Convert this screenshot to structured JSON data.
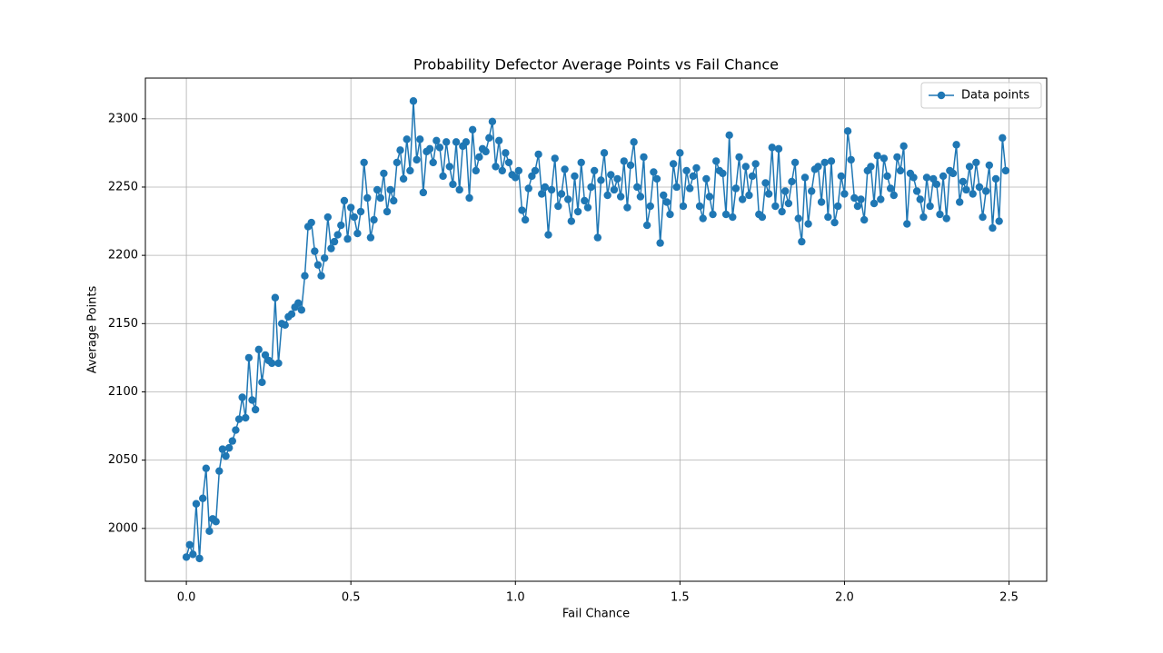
{
  "chart_data": {
    "type": "line",
    "title": "Probability Defector Average Points vs Fail Chance",
    "x_label": "Fail Chance",
    "y_label": "Average Points",
    "xlim": [
      -0.1245,
      2.6145
    ],
    "ylim": [
      1961.3,
      2329.8
    ],
    "xticks": [
      {
        "value": 0,
        "label": "0.0"
      },
      {
        "value": 0.5,
        "label": "0.5"
      },
      {
        "value": 1,
        "label": "1.0"
      },
      {
        "value": 1.5,
        "label": "1.5"
      },
      {
        "value": 2,
        "label": "2.0"
      },
      {
        "value": 2.5,
        "label": "2.5"
      }
    ],
    "yticks": [
      2000,
      2050,
      2100,
      2150,
      2200,
      2250,
      2300
    ],
    "grid": true,
    "legend": "upper right",
    "x": [
      0,
      0.01,
      0.02,
      0.03,
      0.04,
      0.05,
      0.06,
      0.07,
      0.08,
      0.09,
      0.1,
      0.11,
      0.12,
      0.13,
      0.14,
      0.15,
      0.16,
      0.17,
      0.18,
      0.19,
      0.2,
      0.21,
      0.22,
      0.23,
      0.24,
      0.25,
      0.26,
      0.27,
      0.28,
      0.29,
      0.3,
      0.31,
      0.32,
      0.33,
      0.34,
      0.35,
      0.36,
      0.37,
      0.38,
      0.39,
      0.4,
      0.41,
      0.42,
      0.43,
      0.44,
      0.45,
      0.46,
      0.47,
      0.48,
      0.49,
      0.5,
      0.51,
      0.52,
      0.53,
      0.54,
      0.55,
      0.56,
      0.57,
      0.58,
      0.59,
      0.6,
      0.61,
      0.62,
      0.63,
      0.64,
      0.65,
      0.66,
      0.67,
      0.68,
      0.69,
      0.7,
      0.71,
      0.72,
      0.73,
      0.74,
      0.75,
      0.76,
      0.77,
      0.78,
      0.79,
      0.8,
      0.81,
      0.82,
      0.83,
      0.84,
      0.85,
      0.86,
      0.87,
      0.88,
      0.89,
      0.9,
      0.91,
      0.92,
      0.93,
      0.94,
      0.95,
      0.96,
      0.97,
      0.98,
      0.99,
      1,
      1.01,
      1.02,
      1.03,
      1.04,
      1.05,
      1.06,
      1.07,
      1.08,
      1.09,
      1.1,
      1.11,
      1.12,
      1.13,
      1.14,
      1.15,
      1.16,
      1.17,
      1.18,
      1.19,
      1.2,
      1.21,
      1.22,
      1.23,
      1.24,
      1.25,
      1.26,
      1.27,
      1.28,
      1.29,
      1.3,
      1.31,
      1.32,
      1.33,
      1.34,
      1.35,
      1.36,
      1.37,
      1.38,
      1.39,
      1.4,
      1.41,
      1.42,
      1.43,
      1.44,
      1.45,
      1.46,
      1.47,
      1.48,
      1.49,
      1.5,
      1.51,
      1.52,
      1.53,
      1.54,
      1.55,
      1.56,
      1.57,
      1.58,
      1.59,
      1.6,
      1.61,
      1.62,
      1.63,
      1.64,
      1.65,
      1.66,
      1.67,
      1.68,
      1.69,
      1.7,
      1.71,
      1.72,
      1.73,
      1.74,
      1.75,
      1.76,
      1.77,
      1.78,
      1.79,
      1.8,
      1.81,
      1.82,
      1.83,
      1.84,
      1.85,
      1.86,
      1.87,
      1.88,
      1.89,
      1.9,
      1.91,
      1.92,
      1.93,
      1.94,
      1.95,
      1.96,
      1.97,
      1.98,
      1.99,
      2,
      2.01,
      2.02,
      2.03,
      2.04,
      2.05,
      2.06,
      2.07,
      2.08,
      2.09,
      2.1,
      2.11,
      2.12,
      2.13,
      2.14,
      2.15,
      2.16,
      2.17,
      2.18,
      2.19,
      2.2,
      2.21,
      2.22,
      2.23,
      2.24,
      2.25,
      2.26,
      2.27,
      2.28,
      2.29,
      2.3,
      2.31,
      2.32,
      2.33,
      2.34,
      2.35,
      2.36,
      2.37,
      2.38,
      2.39,
      2.4,
      2.41,
      2.42,
      2.43,
      2.44,
      2.45,
      2.46,
      2.47,
      2.48,
      2.49
    ],
    "series": [
      {
        "name": "Data points",
        "color": "#1f77b4",
        "values": [
          1979,
          1988,
          1981,
          2018,
          1978,
          2022,
          2044,
          1998,
          2007,
          2005,
          2042,
          2058,
          2053,
          2059,
          2064,
          2072,
          2080,
          2096,
          2081,
          2125,
          2094,
          2087,
          2131,
          2107,
          2127,
          2123,
          2121,
          2169,
          2121,
          2150,
          2149,
          2155,
          2157,
          2162,
          2165,
          2160,
          2185,
          2221,
          2224,
          2203,
          2193,
          2185,
          2198,
          2228,
          2205,
          2210,
          2215,
          2222,
          2240,
          2212,
          2235,
          2228,
          2216,
          2232,
          2268,
          2242,
          2213,
          2226,
          2248,
          2242,
          2260,
          2232,
          2248,
          2240,
          2268,
          2277,
          2256,
          2285,
          2262,
          2313,
          2270,
          2285,
          2246,
          2276,
          2278,
          2268,
          2284,
          2279,
          2258,
          2283,
          2265,
          2252,
          2283,
          2248,
          2280,
          2283,
          2242,
          2292,
          2262,
          2272,
          2278,
          2276,
          2286,
          2298,
          2265,
          2284,
          2262,
          2275,
          2268,
          2259,
          2257,
          2262,
          2233,
          2226,
          2249,
          2258,
          2262,
          2274,
          2245,
          2250,
          2215,
          2248,
          2271,
          2236,
          2245,
          2263,
          2241,
          2225,
          2258,
          2232,
          2268,
          2240,
          2235,
          2250,
          2262,
          2213,
          2255,
          2275,
          2244,
          2259,
          2248,
          2256,
          2243,
          2269,
          2235,
          2266,
          2283,
          2250,
          2243,
          2272,
          2222,
          2236,
          2261,
          2256,
          2209,
          2244,
          2239,
          2230,
          2267,
          2250,
          2275,
          2236,
          2262,
          2249,
          2258,
          2264,
          2236,
          2227,
          2256,
          2243,
          2230,
          2269,
          2262,
          2260,
          2230,
          2288,
          2228,
          2249,
          2272,
          2241,
          2265,
          2244,
          2258,
          2267,
          2230,
          2228,
          2253,
          2245,
          2279,
          2236,
          2278,
          2232,
          2247,
          2238,
          2254,
          2268,
          2227,
          2210,
          2257,
          2223,
          2247,
          2263,
          2265,
          2239,
          2268,
          2228,
          2269,
          2224,
          2236,
          2258,
          2245,
          2291,
          2270,
          2242,
          2236,
          2241,
          2226,
          2262,
          2265,
          2238,
          2273,
          2241,
          2271,
          2258,
          2249,
          2244,
          2272,
          2262,
          2280,
          2223,
          2260,
          2257,
          2247,
          2241,
          2228,
          2257,
          2236,
          2256,
          2252,
          2230,
          2258,
          2227,
          2262,
          2260,
          2281,
          2239,
          2254,
          2248,
          2265,
          2245,
          2268,
          2250,
          2228,
          2247,
          2266,
          2220,
          2256,
          2225,
          2286,
          2262
        ]
      }
    ]
  }
}
